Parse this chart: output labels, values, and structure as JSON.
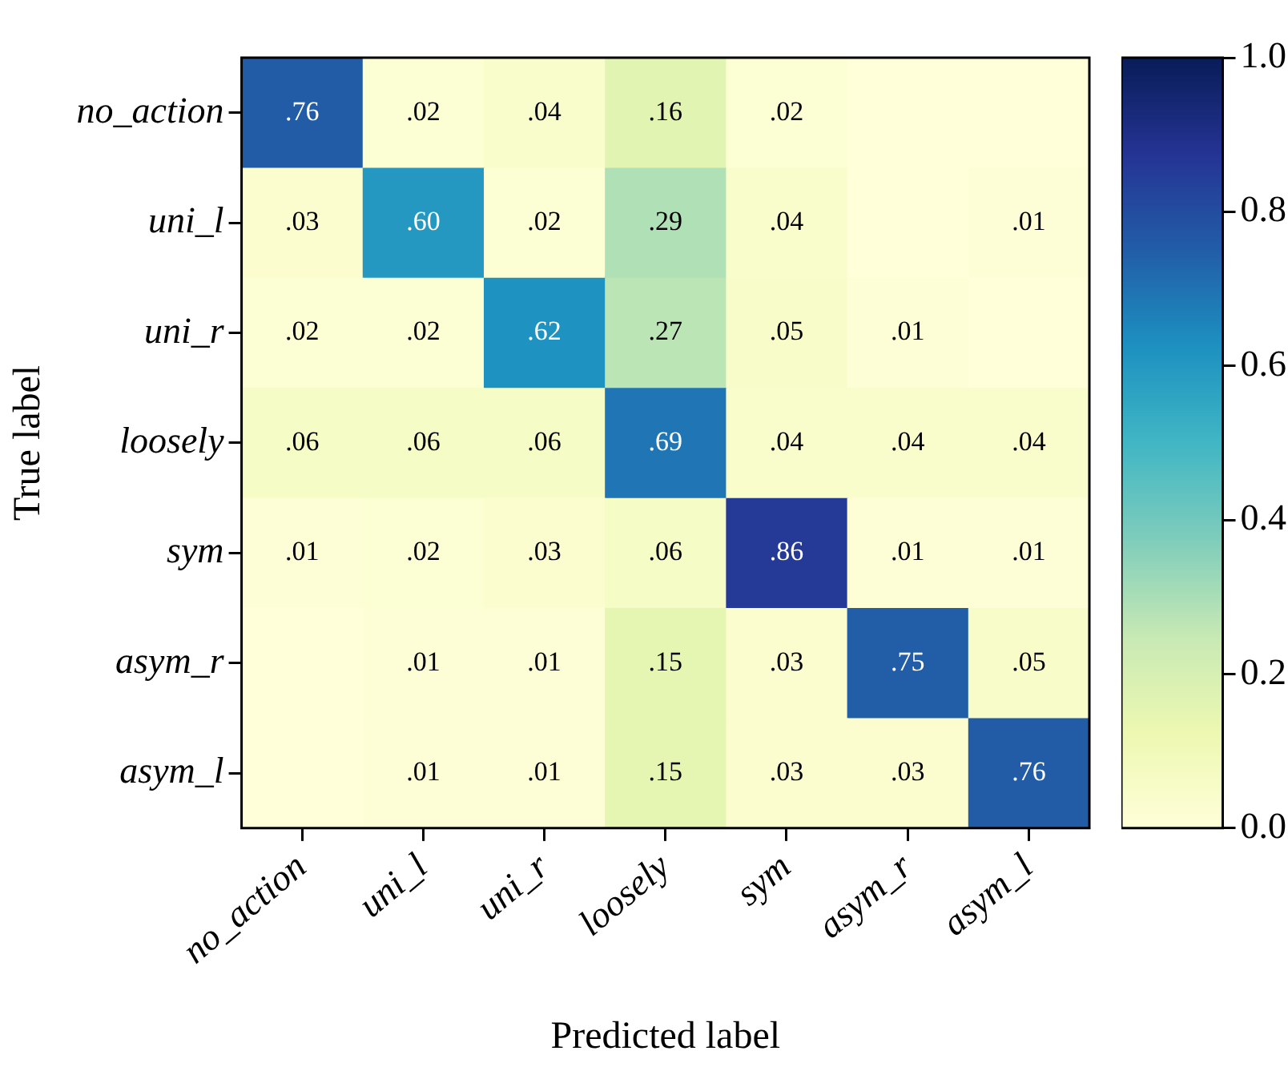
{
  "chart_data": {
    "type": "heatmap",
    "xlabel": "Predicted label",
    "ylabel": "True label",
    "categories": [
      "no_action",
      "uni_l",
      "uni_r",
      "loosely",
      "sym",
      "asym_r",
      "asym_l"
    ],
    "y_categories": [
      "no_action",
      "uni_l",
      "uni_r",
      "loosely",
      "sym",
      "asym_r",
      "asym_l"
    ],
    "cells": [
      [
        0.76,
        0.02,
        0.04,
        0.16,
        0.02,
        0,
        0
      ],
      [
        0.03,
        0.6,
        0.02,
        0.29,
        0.04,
        0,
        0.01
      ],
      [
        0.02,
        0.02,
        0.62,
        0.27,
        0.05,
        0.01,
        0
      ],
      [
        0.06,
        0.06,
        0.06,
        0.69,
        0.04,
        0.04,
        0.04
      ],
      [
        0.01,
        0.02,
        0.03,
        0.06,
        0.86,
        0.01,
        0.01
      ],
      [
        0,
        0.01,
        0.01,
        0.15,
        0.03,
        0.75,
        0.05
      ],
      [
        0,
        0.01,
        0.01,
        0.15,
        0.03,
        0.03,
        0.76
      ]
    ],
    "cell_labels": [
      [
        ".76",
        ".02",
        ".04",
        ".16",
        ".02",
        null,
        null
      ],
      [
        ".03",
        ".60",
        ".02",
        ".29",
        ".04",
        null,
        ".01"
      ],
      [
        ".02",
        ".02",
        ".62",
        ".27",
        ".05",
        ".01",
        null
      ],
      [
        ".06",
        ".06",
        ".06",
        ".69",
        ".04",
        ".04",
        ".04"
      ],
      [
        ".01",
        ".02",
        ".03",
        ".06",
        ".86",
        ".01",
        ".01"
      ],
      [
        null,
        ".01",
        ".01",
        ".15",
        ".03",
        ".75",
        ".05"
      ],
      [
        null,
        ".01",
        ".01",
        ".15",
        ".03",
        ".03",
        ".76"
      ]
    ],
    "clim": [
      0,
      1
    ],
    "cticks": [
      {
        "value": 0,
        "label": "0.0"
      },
      {
        "value": 0.2,
        "label": "0.2"
      },
      {
        "value": 0.4,
        "label": "0.4"
      },
      {
        "value": 0.6,
        "label": "0.6"
      },
      {
        "value": 0.8,
        "label": "0.8"
      },
      {
        "value": 1,
        "label": "1.0"
      }
    ]
  }
}
